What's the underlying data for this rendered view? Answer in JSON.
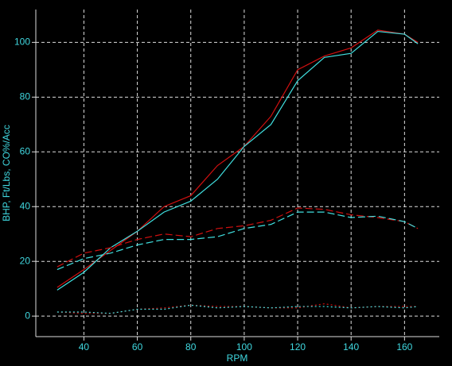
{
  "chart_data": {
    "type": "line",
    "x_label": "RPM",
    "y_label": "BHP, Ft/Lbs, CO%/Acc",
    "x": [
      30,
      40,
      50,
      60,
      70,
      80,
      90,
      100,
      110,
      120,
      130,
      140,
      150,
      160,
      165
    ],
    "series": [
      {
        "color": "#d01010",
        "line_style": "solid",
        "values": [
          10.5,
          17,
          24,
          31,
          40,
          44,
          55,
          62,
          73,
          90,
          95,
          98,
          104.5,
          103,
          100
        ]
      },
      {
        "color": "#40e0e0",
        "line_style": "solid",
        "values": [
          9.5,
          16,
          25,
          31,
          38,
          42,
          50,
          62,
          70,
          86,
          94.5,
          96,
          104,
          103,
          99.5
        ]
      },
      {
        "color": "#d01010",
        "line_style": "dashed",
        "values": [
          18,
          23,
          25,
          28,
          30,
          29,
          32,
          33,
          35,
          39.5,
          39,
          37,
          36,
          34.5,
          32
        ]
      },
      {
        "color": "#40e0e0",
        "line_style": "dashed",
        "values": [
          17,
          21,
          23,
          26,
          28,
          28,
          29,
          32,
          33.5,
          38,
          38,
          36,
          36.5,
          34.5,
          32
        ]
      },
      {
        "color": "#d01010",
        "line_style": "dotted",
        "values": [
          1.5,
          1,
          1,
          2.5,
          3,
          4,
          3.5,
          3.5,
          3,
          3,
          4.5,
          3,
          3.5,
          3.5,
          3.5
        ]
      },
      {
        "color": "#40e0e0",
        "line_style": "dotted",
        "values": [
          1.5,
          1.5,
          1,
          2.5,
          2.5,
          4,
          3,
          3.5,
          3,
          3.5,
          3.5,
          3,
          3.5,
          3,
          3.5
        ]
      }
    ],
    "xlim": [
      22,
      173
    ],
    "ylim": [
      -7.5,
      112
    ],
    "xticks": [
      40,
      60,
      80,
      100,
      120,
      140,
      160
    ],
    "yticks": [
      0,
      20,
      40,
      60,
      80,
      100
    ],
    "grid": true
  }
}
